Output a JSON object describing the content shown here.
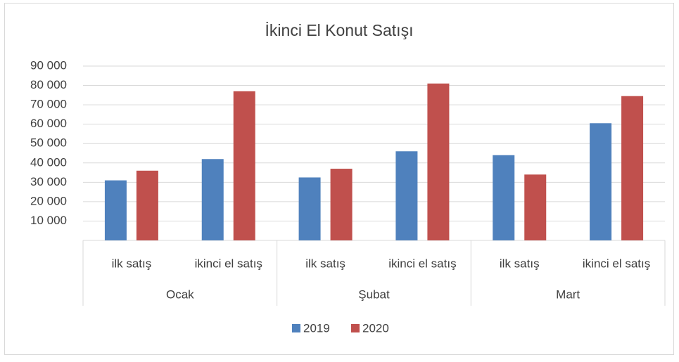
{
  "chart_data": {
    "type": "bar",
    "title": "İkinci El Konut Satışı",
    "categories": [
      "ilk satış",
      "ikinci el satış",
      "ilk satış",
      "ikinci el satış",
      "ilk satış",
      "ikinci el satış"
    ],
    "groups": [
      "Ocak",
      "Şubat",
      "Mart"
    ],
    "series": [
      {
        "name": "2019",
        "color": "#4f81bd",
        "values": [
          31000,
          42000,
          32500,
          46000,
          44000,
          60500
        ]
      },
      {
        "name": "2020",
        "color": "#c0504d",
        "values": [
          36000,
          77000,
          37000,
          81000,
          34000,
          74500
        ]
      }
    ],
    "ylim": [
      0,
      90000
    ],
    "yticks": [
      {
        "value": 10000,
        "label": "10 000"
      },
      {
        "value": 20000,
        "label": "20 000"
      },
      {
        "value": 30000,
        "label": "30 000"
      },
      {
        "value": 40000,
        "label": "40 000"
      },
      {
        "value": 50000,
        "label": "50 000"
      },
      {
        "value": 60000,
        "label": "60 000"
      },
      {
        "value": 70000,
        "label": "70 000"
      },
      {
        "value": 80000,
        "label": "80 000"
      },
      {
        "value": 90000,
        "label": "90 000"
      }
    ],
    "grid": true,
    "legend": "bottom"
  }
}
